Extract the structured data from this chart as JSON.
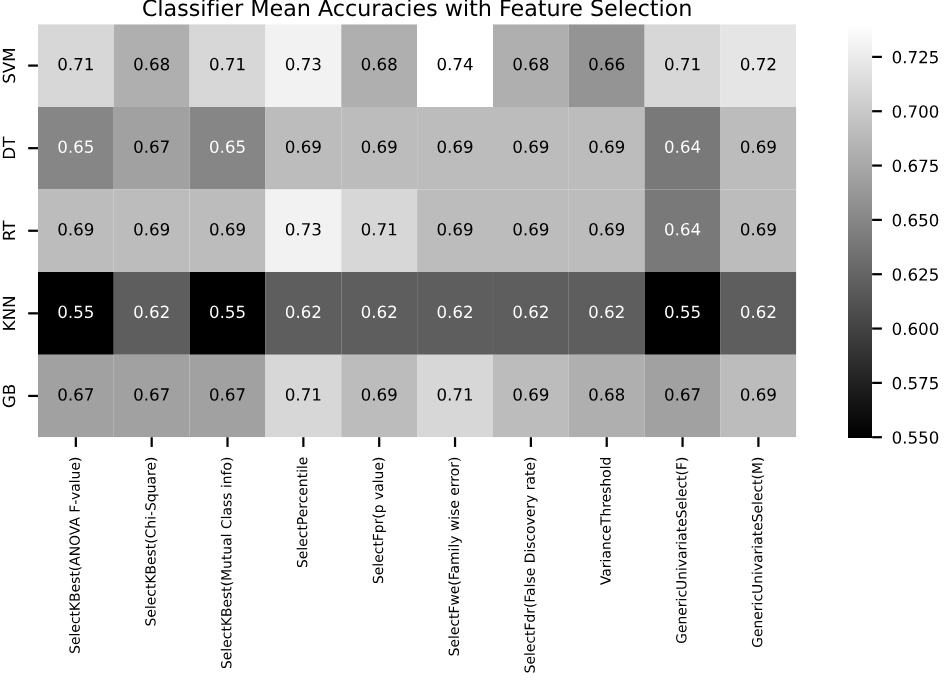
{
  "chart_data": {
    "type": "heatmap",
    "title": "Classifier Mean Accuracies with Feature Selection",
    "categories": [
      "SelectKBest(ANOVA F-value)",
      "SelectKBest(Chi-Square)",
      "SelectKBest(Mutual Class info)",
      "SelectPercentile",
      "SelectFpr(p value)",
      "SelectFwe(Family wise error)",
      "SelectFdr(False Discovery rate)",
      "VarianceThreshold",
      "GenericUnivariateSelect(F)",
      "GenericUnivariateSelect(M)"
    ],
    "y_categories": [
      "SVM",
      "DT",
      "RT",
      "KNN",
      "GB"
    ],
    "cells": [
      [
        0.71,
        0.68,
        0.71,
        0.73,
        0.68,
        0.74,
        0.68,
        0.66,
        0.71,
        0.72
      ],
      [
        0.65,
        0.67,
        0.65,
        0.69,
        0.69,
        0.69,
        0.69,
        0.69,
        0.64,
        0.69
      ],
      [
        0.69,
        0.69,
        0.69,
        0.73,
        0.71,
        0.69,
        0.69,
        0.69,
        0.64,
        0.69
      ],
      [
        0.55,
        0.62,
        0.55,
        0.62,
        0.62,
        0.62,
        0.62,
        0.62,
        0.55,
        0.62
      ],
      [
        0.67,
        0.67,
        0.67,
        0.71,
        0.69,
        0.71,
        0.69,
        0.68,
        0.67,
        0.69
      ]
    ],
    "data_labels": true,
    "clim": [
      0.55,
      0.74
    ],
    "cticks": [
      {
        "value": 0.55,
        "label": "0.550"
      },
      {
        "value": 0.575,
        "label": "0.575"
      },
      {
        "value": 0.6,
        "label": "0.600"
      },
      {
        "value": 0.625,
        "label": "0.625"
      },
      {
        "value": 0.65,
        "label": "0.650"
      },
      {
        "value": 0.675,
        "label": "0.675"
      },
      {
        "value": 0.7,
        "label": "0.700"
      },
      {
        "value": 0.725,
        "label": "0.725"
      }
    ]
  }
}
